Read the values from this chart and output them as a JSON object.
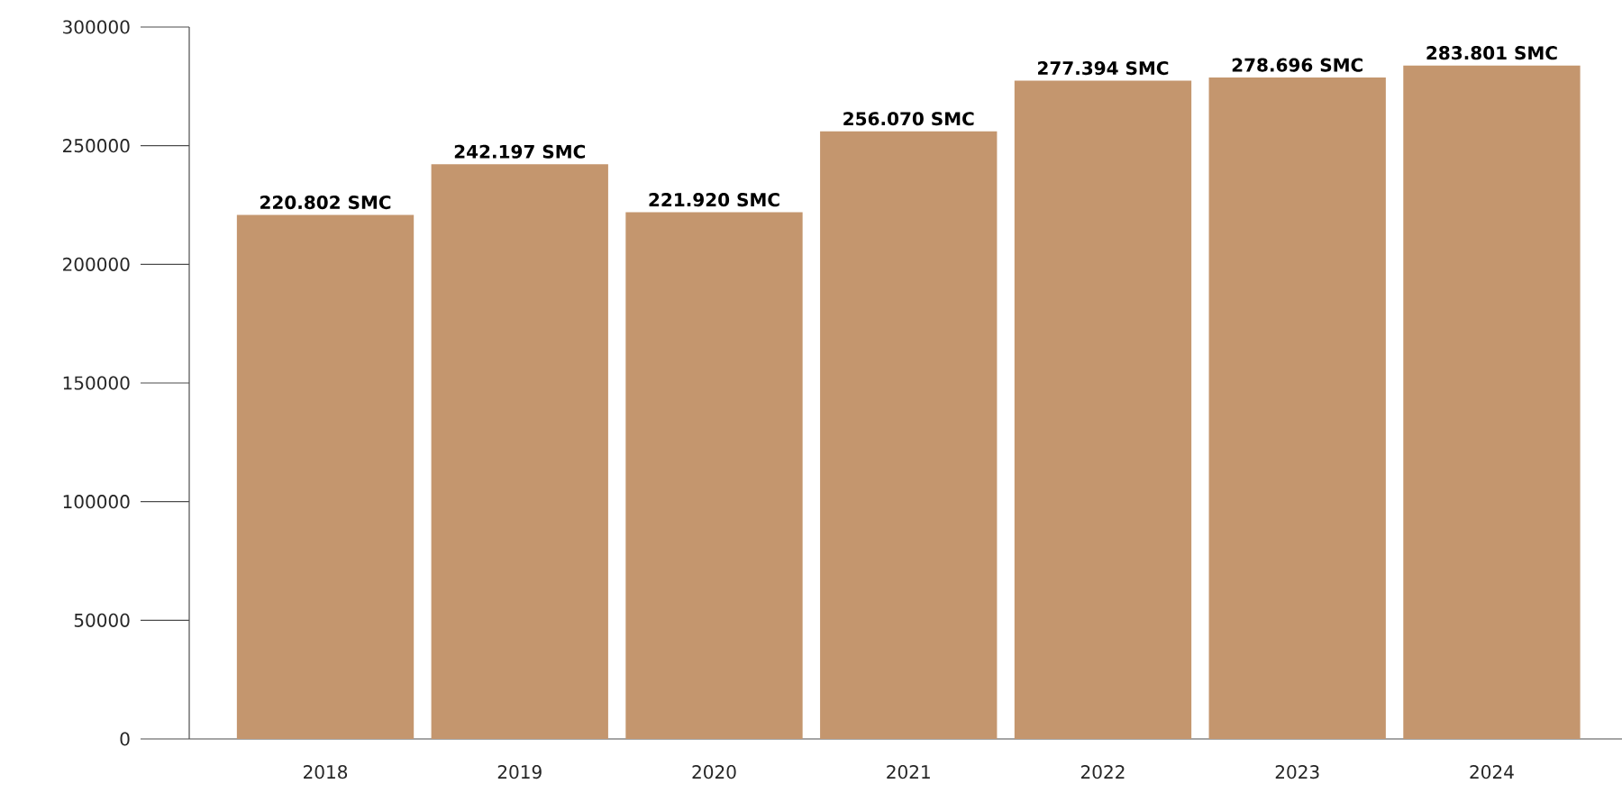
{
  "chart_data": {
    "type": "bar",
    "categories": [
      "2018",
      "2019",
      "2020",
      "2021",
      "2022",
      "2023",
      "2024"
    ],
    "values": [
      220802,
      242197,
      221920,
      256070,
      277394,
      278696,
      283801
    ],
    "value_labels": [
      "220.802 SMC",
      "242.197 SMC",
      "221.920 SMC",
      "256.070 SMC",
      "277.394 SMC",
      "278.696 SMC",
      "283.801 SMC"
    ],
    "color": "#c4966e",
    "ylim": [
      0,
      300000
    ],
    "yticks": [
      0,
      50000,
      100000,
      150000,
      200000,
      250000,
      300000
    ]
  }
}
